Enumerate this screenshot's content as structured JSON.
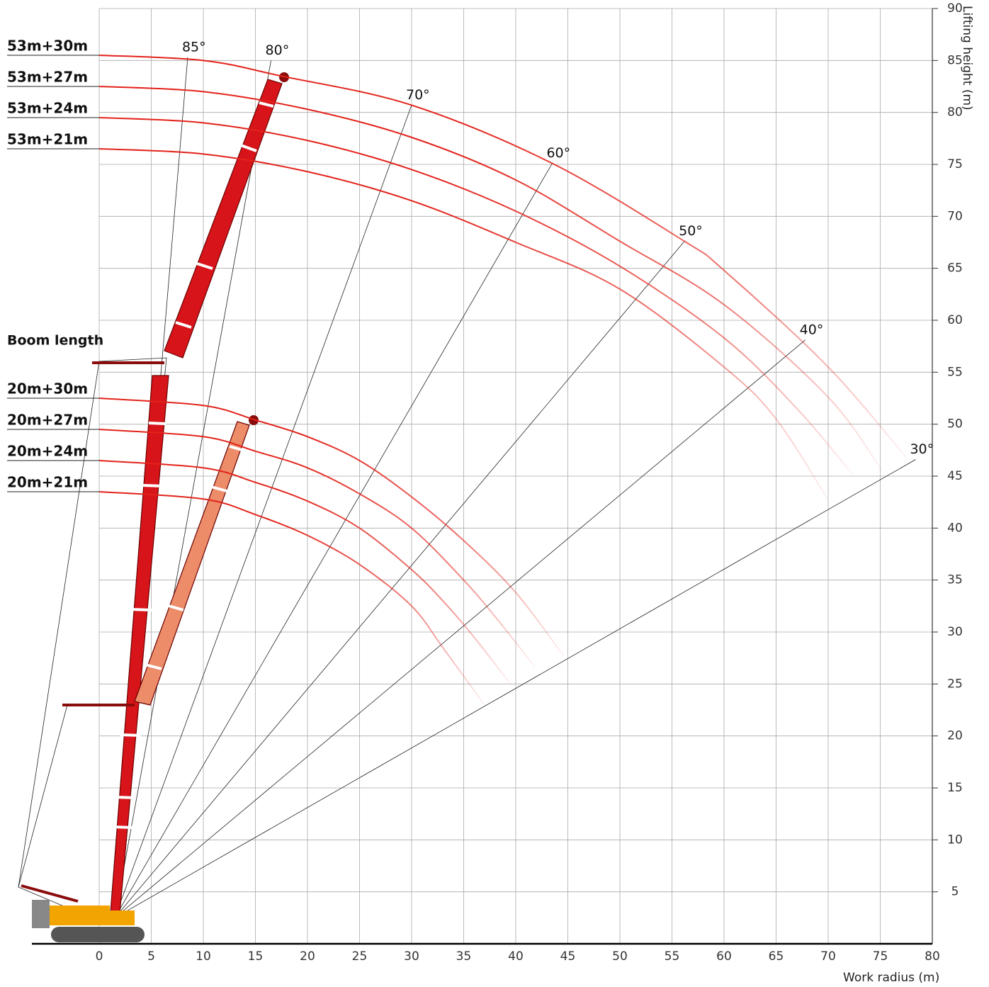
{
  "chart_data": {
    "type": "line",
    "title": "Boom length",
    "x_label": "Work radius (m)",
    "y_label": "Lifting height (m)",
    "xlim": [
      0,
      80
    ],
    "ylim": [
      0,
      90
    ],
    "xticks": [
      0,
      5,
      10,
      15,
      20,
      25,
      30,
      35,
      40,
      45,
      50,
      55,
      60,
      65,
      70,
      75,
      80
    ],
    "yticks": [
      5,
      10,
      15,
      20,
      25,
      30,
      35,
      40,
      45,
      50,
      55,
      60,
      65,
      70,
      75,
      80,
      85,
      90
    ],
    "grid": true,
    "series": [
      {
        "name": "53m+30m",
        "color": "#e3231b",
        "x": [
          0,
          10,
          17.5,
          30,
          43.5,
          56.2,
          60,
          70,
          77.5
        ],
        "values": [
          85.5,
          85,
          83.5,
          80.7,
          75.1,
          67.6,
          64.8,
          55.5,
          46.8
        ]
      },
      {
        "name": "53m+27m",
        "color": "#e3231b",
        "x": [
          0,
          10,
          20,
          30,
          40,
          50,
          60,
          70,
          75.2
        ],
        "values": [
          82.5,
          82,
          80.3,
          77.6,
          73.5,
          67.6,
          61.5,
          52.6,
          45.5
        ]
      },
      {
        "name": "53m+24m",
        "color": "#e3231b",
        "x": [
          0,
          10,
          20,
          30,
          40,
          50,
          60,
          67,
          72.4
        ],
        "values": [
          79.5,
          79,
          77.3,
          74.5,
          70.5,
          65.2,
          58.3,
          51.5,
          45.1
        ]
      },
      {
        "name": "53m+21m",
        "color": "#e3231b",
        "x": [
          0,
          10,
          20,
          30,
          40,
          50,
          60,
          65,
          70
        ],
        "values": [
          76.5,
          76,
          74.3,
          71.5,
          67.5,
          63,
          55.5,
          50.5,
          42.7
        ]
      },
      {
        "name": "20m+30m",
        "color": "#e3231b",
        "x": [
          0,
          10,
          15,
          20,
          25,
          30,
          35,
          40,
          44.6
        ],
        "values": [
          52.5,
          51.8,
          50.4,
          48.8,
          46.5,
          43,
          38.8,
          33.8,
          27.7
        ]
      },
      {
        "name": "20m+27m",
        "color": "#e3231b",
        "x": [
          0,
          10,
          15,
          20,
          25,
          30,
          35,
          38,
          41.8
        ],
        "values": [
          49.5,
          48.8,
          47.4,
          45.8,
          43.3,
          40,
          35,
          31.5,
          26.7
        ]
      },
      {
        "name": "20m+24m",
        "color": "#e3231b",
        "x": [
          0,
          10,
          15,
          20,
          25,
          30,
          33,
          36,
          39.5
        ],
        "values": [
          46.5,
          45.8,
          44.4,
          42.6,
          40,
          36,
          33,
          29.5,
          25
        ]
      },
      {
        "name": "20m+21m",
        "color": "#e3231b",
        "x": [
          0,
          10,
          15,
          20,
          25,
          30,
          33,
          37
        ],
        "values": [
          43.5,
          42.8,
          41.3,
          39.3,
          36.5,
          32.5,
          28.5,
          23
        ]
      }
    ],
    "pivot": [
      1.5,
      2.5
    ],
    "angle_lines": [
      {
        "label": "85°",
        "x": 8.5,
        "y": 85.3
      },
      {
        "label": "80°",
        "x": 16.5,
        "y": 85
      },
      {
        "label": "70°",
        "x": 30,
        "y": 80.7
      },
      {
        "label": "60°",
        "x": 43.5,
        "y": 75.1
      },
      {
        "label": "50°",
        "x": 56.2,
        "y": 67.6
      },
      {
        "label": "40°",
        "x": 67.8,
        "y": 58.1
      },
      {
        "label": "30°",
        "x": 78.4,
        "y": 46.6
      }
    ]
  }
}
